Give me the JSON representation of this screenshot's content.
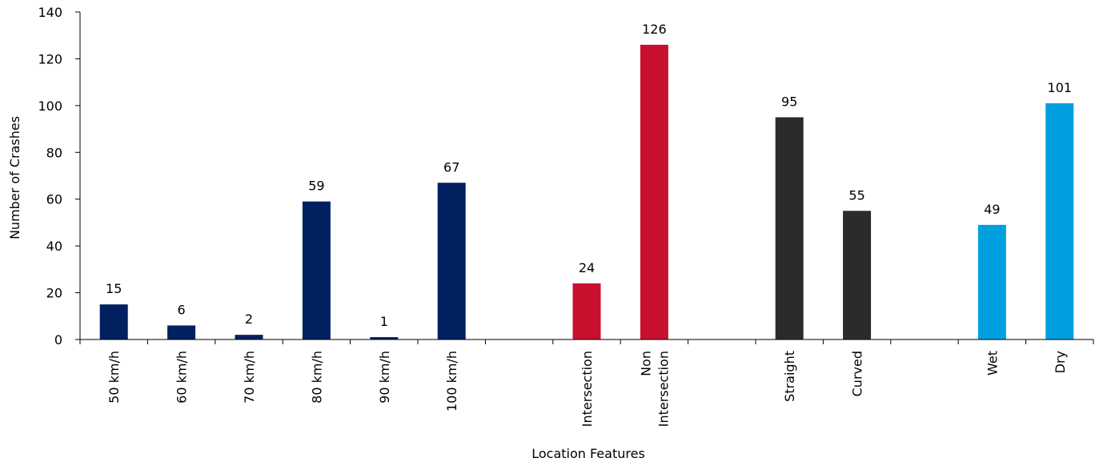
{
  "chart_data": {
    "type": "bar",
    "xlabel": "Location Features",
    "ylabel": "Number of Crashes",
    "ylim": [
      0,
      140
    ],
    "yticks": [
      0,
      20,
      40,
      60,
      80,
      100,
      120,
      140
    ],
    "grid": false,
    "legend": "none",
    "categories": [
      [
        "50 km/h"
      ],
      [
        "60 km/h"
      ],
      [
        "70 km/h"
      ],
      [
        "80 km/h"
      ],
      [
        "90 km/h"
      ],
      [
        "100 km/h"
      ],
      [],
      [
        "Intersection"
      ],
      [
        "Non",
        "Intersection"
      ],
      [],
      [
        "Straight"
      ],
      [
        "Curved"
      ],
      [],
      [
        "Wet"
      ],
      [
        "Dry"
      ]
    ],
    "values": [
      15,
      6,
      2,
      59,
      1,
      67,
      null,
      24,
      126,
      null,
      95,
      55,
      null,
      49,
      101
    ],
    "colors": [
      "#002060",
      "#002060",
      "#002060",
      "#002060",
      "#002060",
      "#002060",
      null,
      "#C8102E",
      "#C8102E",
      null,
      "#2B2B2B",
      "#2B2B2B",
      null,
      "#00A0E0",
      "#00A0E0"
    ]
  }
}
